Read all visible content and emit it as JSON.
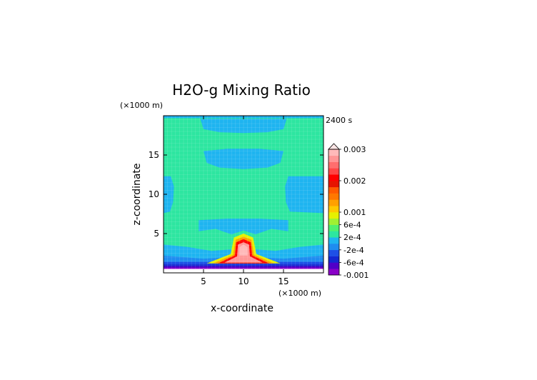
{
  "chart_data": {
    "type": "heatmap",
    "title": "H2O-g Mixing Ratio",
    "time_label": "2400 s",
    "xlabel": "x-coordinate",
    "ylabel": "z-coordinate",
    "x_unit": "(×1000 m)",
    "y_unit": "(×1000 m)",
    "xlim": [
      0,
      20
    ],
    "ylim": [
      0,
      20
    ],
    "x_ticks": [
      5,
      10,
      15
    ],
    "y_ticks": [
      5,
      10,
      15
    ],
    "colorbar": {
      "colors": [
        "#8a00c8",
        "#5000c8",
        "#1428d2",
        "#1e50e6",
        "#1e8cf0",
        "#1eb4f0",
        "#2de6a0",
        "#50f06e",
        "#a0f032",
        "#e6f000",
        "#ffc800",
        "#ffa000",
        "#ff7800",
        "#ff5a00",
        "#e61400",
        "#ff0000",
        "#ff4646",
        "#ff6e6e",
        "#ff9696",
        "#ffb9b9"
      ],
      "overflow_color": "#ffe6e6",
      "labels": [
        {
          "text": "-0.001",
          "level": 0
        },
        {
          "text": "-6e-4",
          "level": 2
        },
        {
          "text": "-2e-4",
          "level": 4
        },
        {
          "text": "2e-4",
          "level": 6
        },
        {
          "text": "6e-4",
          "level": 8
        },
        {
          "text": "0.001",
          "level": 10
        },
        {
          "text": "0.002",
          "level": 15
        },
        {
          "text": "0.003",
          "level": 20
        }
      ]
    },
    "regions": [
      {
        "name": "background",
        "color": "#2de6a0",
        "shape": "rect",
        "x": 0,
        "y": 0,
        "w": 20,
        "h": 20
      },
      {
        "name": "top-band",
        "color": "#1eb4f0",
        "shape": "rect",
        "x": 0,
        "y": 19.7,
        "w": 20,
        "h": 0.3
      },
      {
        "name": "upper-left-arc",
        "color": "#1eb4f0",
        "shape": "poly",
        "points": [
          [
            4.6,
            19.6
          ],
          [
            15.4,
            19.6
          ],
          [
            15,
            18.3
          ],
          [
            13,
            17.9
          ],
          [
            10,
            17.8
          ],
          [
            7,
            17.9
          ],
          [
            5,
            18.3
          ]
        ]
      },
      {
        "name": "mid-blob",
        "color": "#1eb4f0",
        "shape": "poly",
        "points": [
          [
            5,
            15.5
          ],
          [
            8,
            15.8
          ],
          [
            12,
            15.8
          ],
          [
            15,
            15.5
          ],
          [
            14.6,
            14
          ],
          [
            13,
            13.4
          ],
          [
            10,
            13.2
          ],
          [
            7,
            13.4
          ],
          [
            5.4,
            14
          ]
        ]
      },
      {
        "name": "left-lobe",
        "color": "#1eb4f0",
        "shape": "poly",
        "points": [
          [
            0,
            12.3
          ],
          [
            0.9,
            12.3
          ],
          [
            1.3,
            11
          ],
          [
            1.2,
            9
          ],
          [
            0.8,
            7.8
          ],
          [
            0,
            7.6
          ]
        ]
      },
      {
        "name": "right-lobe",
        "color": "#1eb4f0",
        "shape": "poly",
        "points": [
          [
            20,
            12.3
          ],
          [
            15.6,
            12.3
          ],
          [
            15.2,
            11
          ],
          [
            15.3,
            9
          ],
          [
            15.8,
            7.8
          ],
          [
            20,
            7.6
          ]
        ]
      },
      {
        "name": "lower-band",
        "color": "#1eb4f0",
        "shape": "poly",
        "points": [
          [
            4.4,
            6.7
          ],
          [
            8,
            6.9
          ],
          [
            12,
            6.9
          ],
          [
            15.6,
            6.7
          ],
          [
            15.6,
            5.3
          ],
          [
            13.5,
            5.6
          ],
          [
            11.5,
            4.9
          ],
          [
            10,
            5.4
          ],
          [
            8.5,
            4.9
          ],
          [
            6.5,
            5.6
          ],
          [
            4.4,
            5.3
          ]
        ]
      },
      {
        "name": "low-layer",
        "color": "#1eb4f0",
        "shape": "poly",
        "points": [
          [
            0,
            3.6
          ],
          [
            3,
            3.3
          ],
          [
            6,
            2.8
          ],
          [
            8.6,
            3
          ],
          [
            8.6,
            1.8
          ],
          [
            11.4,
            1.8
          ],
          [
            11.4,
            3
          ],
          [
            14,
            2.8
          ],
          [
            17,
            3.3
          ],
          [
            20,
            3.6
          ],
          [
            20,
            0.5
          ],
          [
            0,
            0.5
          ]
        ]
      },
      {
        "name": "low-layer-2",
        "color": "#1e8cf0",
        "shape": "poly",
        "points": [
          [
            0,
            2.2
          ],
          [
            5,
            1.8
          ],
          [
            8.2,
            2
          ],
          [
            11.8,
            2
          ],
          [
            15,
            1.8
          ],
          [
            20,
            2.2
          ],
          [
            20,
            0.5
          ],
          [
            0,
            0.5
          ]
        ]
      },
      {
        "name": "surface-1",
        "color": "#1e50e6",
        "shape": "rect",
        "x": 0,
        "y": 0.5,
        "w": 20,
        "h": 0.9
      },
      {
        "name": "surface-2",
        "color": "#1428d2",
        "shape": "rect",
        "x": 0,
        "y": 0.5,
        "w": 20,
        "h": 0.6
      },
      {
        "name": "surface-3",
        "color": "#5000c8",
        "shape": "rect",
        "x": 0,
        "y": 0.5,
        "w": 20,
        "h": 0.35
      },
      {
        "name": "surface-4",
        "color": "#8a00c8",
        "shape": "rect",
        "x": 0,
        "y": 0.5,
        "w": 20,
        "h": 0.15
      },
      {
        "name": "bottom-layer",
        "color": "#ffffff",
        "shape": "rect",
        "x": 0,
        "y": 0,
        "w": 20,
        "h": 0.5
      },
      {
        "name": "plume-yellow",
        "color": "#e6f000",
        "shape": "poly",
        "points": [
          [
            5.4,
            1.2
          ],
          [
            8.4,
            2.4
          ],
          [
            8.8,
            4.5
          ],
          [
            10,
            5
          ],
          [
            11.2,
            4.5
          ],
          [
            11.6,
            2.4
          ],
          [
            14.6,
            1.2
          ]
        ]
      },
      {
        "name": "plume-orange",
        "color": "#ffa000",
        "shape": "poly",
        "points": [
          [
            6.2,
            1.2
          ],
          [
            8.7,
            2.3
          ],
          [
            9,
            4.2
          ],
          [
            10,
            4.6
          ],
          [
            11,
            4.2
          ],
          [
            11.3,
            2.3
          ],
          [
            13.8,
            1.2
          ]
        ]
      },
      {
        "name": "plume-red",
        "color": "#ff0000",
        "shape": "poly",
        "points": [
          [
            6.8,
            1.2
          ],
          [
            8.9,
            2.2
          ],
          [
            9.1,
            3.9
          ],
          [
            10,
            4.3
          ],
          [
            10.9,
            3.9
          ],
          [
            11.1,
            2.2
          ],
          [
            13.2,
            1.2
          ]
        ]
      },
      {
        "name": "plume-pink",
        "color": "#ff9696",
        "shape": "poly",
        "points": [
          [
            7.6,
            1.3
          ],
          [
            9.2,
            2.1
          ],
          [
            9.3,
            3.6
          ],
          [
            10,
            3.9
          ],
          [
            10.7,
            3.6
          ],
          [
            10.8,
            2.1
          ],
          [
            12.4,
            1.3
          ]
        ]
      },
      {
        "name": "plume-core",
        "color": "#ffb9b9",
        "shape": "poly",
        "points": [
          [
            9.5,
            2.2
          ],
          [
            9.5,
            3.3
          ],
          [
            10,
            3.6
          ],
          [
            10.5,
            3.3
          ],
          [
            10.5,
            2.2
          ]
        ]
      }
    ]
  }
}
